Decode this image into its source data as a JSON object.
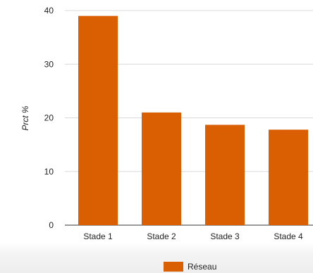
{
  "chart_data": {
    "type": "bar",
    "title": "",
    "xlabel": "",
    "ylabel": "Prct %",
    "categories": [
      "Stade 1",
      "Stade 2",
      "Stade 3",
      "Stade 4"
    ],
    "series": [
      {
        "name": "Réseau",
        "values": [
          39,
          21,
          18.7,
          17.8
        ],
        "color": "#d95f02"
      }
    ],
    "ylim": [
      0,
      40
    ],
    "yticks": [
      0,
      10,
      20,
      30,
      40
    ],
    "grid": true,
    "legend_position": "bottom"
  }
}
